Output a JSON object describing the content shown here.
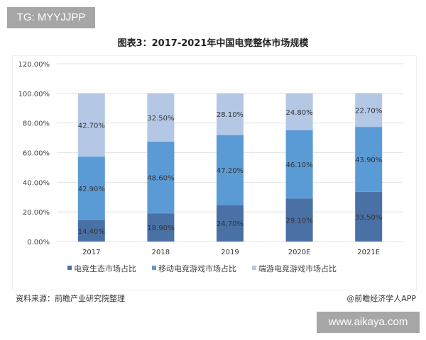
{
  "tag": "TG: MYYJJPP",
  "watermark": "www.aikaya.com",
  "source": "资料来源：前瞻产业研究院整理",
  "credit": "@前瞻经济学人APP",
  "chart_data": {
    "type": "bar",
    "stacked": true,
    "title": "图表3：2017-2021年中国电竞整体市场规模",
    "categories": [
      "2017",
      "2018",
      "2019",
      "2020E",
      "2021E"
    ],
    "ylim": [
      0,
      120
    ],
    "yticks": [
      "0.00%",
      "20.00%",
      "40.00%",
      "60.00%",
      "80.00%",
      "100.00%",
      "120.00%"
    ],
    "grid": true,
    "legend_position": "bottom",
    "series": [
      {
        "name": "电竞生态市场占比",
        "color": "#4a71a6",
        "values": [
          14.4,
          18.9,
          24.7,
          29.1,
          33.5
        ],
        "labels": [
          "14.40%",
          "18.90%",
          "24.70%",
          "29.10%",
          "33.50%"
        ]
      },
      {
        "name": "移动电竞游戏市场占比",
        "color": "#5b9bd5",
        "values": [
          42.9,
          48.6,
          47.2,
          46.1,
          43.9
        ],
        "labels": [
          "42.90%",
          "48.60%",
          "47.20%",
          "46.10%",
          "43.90%"
        ]
      },
      {
        "name": "端游电竞游戏市场占比",
        "color": "#b4c8e6",
        "values": [
          42.7,
          32.5,
          28.1,
          24.8,
          22.7
        ],
        "labels": [
          "42.70%",
          "32.50%",
          "28.10%",
          "24.80%",
          "22.70%"
        ]
      }
    ]
  }
}
